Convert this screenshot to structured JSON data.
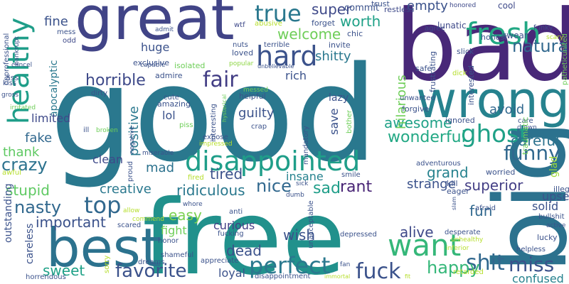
{
  "word_cloud": {
    "words": [
      {
        "text": "good",
        "color": "#2a788e"
      },
      {
        "text": "free",
        "color": "#21918c"
      },
      {
        "text": "bad",
        "color": "#482878"
      },
      {
        "text": "big",
        "color": "#2c728e"
      },
      {
        "text": "great",
        "color": "#414487"
      },
      {
        "text": "best",
        "color": "#2c728e"
      },
      {
        "text": "wrong",
        "color": "#26828e"
      },
      {
        "text": "disappointed",
        "color": "#1f9e89"
      },
      {
        "text": "hard",
        "color": "#3b528b"
      },
      {
        "text": "want",
        "color": "#35b779"
      },
      {
        "text": "healthy",
        "color": "#1f9e89"
      },
      {
        "text": "fresh",
        "color": "#22a884"
      },
      {
        "text": "true",
        "color": "#2a788e"
      },
      {
        "text": "fair",
        "color": "#433e85"
      },
      {
        "text": "top",
        "color": "#31688e"
      },
      {
        "text": "perfect",
        "color": "#2a788e"
      },
      {
        "text": "fuck",
        "color": "#3b528b"
      },
      {
        "text": "ghost",
        "color": "#1fa187"
      },
      {
        "text": "shit",
        "color": "#31688e"
      },
      {
        "text": "miss",
        "color": "#3b528b"
      },
      {
        "text": "happy",
        "color": "#35b779"
      },
      {
        "text": "favorite",
        "color": "#3b528b"
      },
      {
        "text": "funny",
        "color": "#31688e"
      },
      {
        "text": "natural",
        "color": "#31688e"
      },
      {
        "text": "crazy",
        "color": "#2c728e"
      },
      {
        "text": "nasty",
        "color": "#31688e"
      },
      {
        "text": "awesome",
        "color": "#1fa187"
      },
      {
        "text": "welcome",
        "color": "#6ece58"
      },
      {
        "text": "super",
        "color": "#3e4989"
      },
      {
        "text": "horrible",
        "color": "#3e4989"
      },
      {
        "text": "nice",
        "color": "#31688e"
      },
      {
        "text": "wonderful",
        "color": "#22a884"
      },
      {
        "text": "ridiculous",
        "color": "#2a788e"
      },
      {
        "text": "sweet",
        "color": "#1fa187"
      },
      {
        "text": "dead",
        "color": "#3b528b"
      },
      {
        "text": "grand",
        "color": "#26828e"
      },
      {
        "text": "superior",
        "color": "#433e85"
      },
      {
        "text": "tired",
        "color": "#3b528b"
      },
      {
        "text": "creative",
        "color": "#2a788e"
      },
      {
        "text": "important",
        "color": "#3b528b"
      },
      {
        "text": "stupid",
        "color": "#5ec962"
      },
      {
        "text": "sad",
        "color": "#1f9e89"
      },
      {
        "text": "rant",
        "color": "#482475"
      },
      {
        "text": "wish",
        "color": "#3b528b"
      },
      {
        "text": "alive",
        "color": "#3e4989"
      },
      {
        "text": "mad",
        "color": "#2c728e"
      },
      {
        "text": "easy",
        "color": "#7ad151"
      },
      {
        "text": "fun",
        "color": "#31688e"
      },
      {
        "text": "careful",
        "color": "#2c728e"
      },
      {
        "text": "fine",
        "color": "#3b528b"
      },
      {
        "text": "huge",
        "color": "#3b528b"
      },
      {
        "text": "worth",
        "color": "#1fa187"
      },
      {
        "text": "shitty",
        "color": "#2a788e"
      },
      {
        "text": "empty",
        "color": "#3b528b"
      },
      {
        "text": "fake",
        "color": "#31688e"
      },
      {
        "text": "thank",
        "color": "#5ec962"
      },
      {
        "text": "guilty",
        "color": "#3b528b"
      },
      {
        "text": "positive",
        "color": "#2a788e"
      },
      {
        "text": "apocalyptic",
        "color": "#2a788e"
      },
      {
        "text": "hilarious",
        "color": "#6ece58"
      },
      {
        "text": "avoid",
        "color": "#31688e"
      },
      {
        "text": "strange",
        "color": "#3b528b"
      },
      {
        "text": "fight",
        "color": "#6ece58"
      },
      {
        "text": "curious",
        "color": "#433e85"
      },
      {
        "text": "insane",
        "color": "#26828e"
      },
      {
        "text": "solid",
        "color": "#3b528b"
      },
      {
        "text": "upset",
        "color": "#3b528b"
      },
      {
        "text": "loyal",
        "color": "#3b528b"
      },
      {
        "text": "confused",
        "color": "#26828e"
      },
      {
        "text": "outstanding",
        "color": "#3b528b"
      },
      {
        "text": "save",
        "color": "#3b528b"
      },
      {
        "text": "rich",
        "color": "#3b528b"
      },
      {
        "text": "limited",
        "color": "#3e4989"
      },
      {
        "text": "clean",
        "color": "#3e4989"
      },
      {
        "text": "lol",
        "color": "#3b528b"
      },
      {
        "text": "lazy",
        "color": "#3b528b"
      },
      {
        "text": "glad",
        "color": "#9fda3a"
      },
      {
        "text": "careless",
        "color": "#3b528b"
      },
      {
        "text": "commit",
        "color": "#3b528b"
      },
      {
        "text": "restless",
        "color": "#3e4989"
      },
      {
        "text": "trust",
        "color": "#3b528b"
      },
      {
        "text": "honored",
        "color": "#3e4989"
      },
      {
        "text": "cool",
        "color": "#3e4989"
      },
      {
        "text": "lunatic",
        "color": "#3e4989"
      },
      {
        "text": "funky",
        "color": "#3e4989"
      },
      {
        "text": "swear",
        "color": "#3b528b"
      },
      {
        "text": "honest",
        "color": "#3b528b"
      },
      {
        "text": "agree",
        "color": "#3e4989"
      },
      {
        "text": "scary",
        "color": "#b5de2b"
      },
      {
        "text": "forget",
        "color": "#3b528b"
      },
      {
        "text": "invite",
        "color": "#3b528b"
      },
      {
        "text": "chic",
        "color": "#3b528b"
      },
      {
        "text": "mess",
        "color": "#3b528b"
      },
      {
        "text": "odd",
        "color": "#3e4989"
      },
      {
        "text": "admit",
        "color": "#3b528b"
      },
      {
        "text": "capable",
        "color": "#3b528b"
      },
      {
        "text": "isolated",
        "color": "#6ece58"
      },
      {
        "text": "wtf",
        "color": "#3e4989"
      },
      {
        "text": "nuts",
        "color": "#3b528b"
      },
      {
        "text": "loved",
        "color": "#3b528b"
      },
      {
        "text": "abusive",
        "color": "#b5de2b"
      },
      {
        "text": "terrible",
        "color": "#3b528b"
      },
      {
        "text": "exclusive",
        "color": "#3b528b"
      },
      {
        "text": "admire",
        "color": "#3b528b"
      },
      {
        "text": "popular",
        "color": "#8ed645"
      },
      {
        "text": "unbelievable",
        "color": "#3b528b"
      },
      {
        "text": "safe",
        "color": "#3b528b"
      },
      {
        "text": "slick",
        "color": "#3b528b"
      },
      {
        "text": "frustrating",
        "color": "#3b528b"
      },
      {
        "text": "dick",
        "color": "#b5de2b"
      },
      {
        "text": "interested",
        "color": "#3b528b"
      },
      {
        "text": "patheticunited",
        "color": "#6ece58"
      },
      {
        "text": "unwanted",
        "color": "#3b528b"
      },
      {
        "text": "forgive",
        "color": "#3b528b"
      },
      {
        "text": "care",
        "color": "#3b528b"
      },
      {
        "text": "drown",
        "color": "#3b528b"
      },
      {
        "text": "traumatic",
        "color": "#6ece58"
      },
      {
        "text": "ignored",
        "color": "#3b528b"
      },
      {
        "text": "adventurous",
        "color": "#3b528b"
      },
      {
        "text": "worried",
        "color": "#3b528b"
      },
      {
        "text": "unprofessional",
        "color": "#3b528b"
      },
      {
        "text": "cancel",
        "color": "#3b528b"
      },
      {
        "text": "bankrupt",
        "color": "#3b528b"
      },
      {
        "text": "ass",
        "color": "#3b528b"
      },
      {
        "text": "kiss",
        "color": "#3b528b"
      },
      {
        "text": "gross",
        "color": "#3b528b"
      },
      {
        "text": "irritated",
        "color": "#6ece58"
      },
      {
        "text": "dirty",
        "color": "#3b528b"
      },
      {
        "text": "cute",
        "color": "#3b528b"
      },
      {
        "text": "amazing",
        "color": "#3b528b"
      },
      {
        "text": "interesting",
        "color": "#3b528b"
      },
      {
        "text": "messed",
        "color": "#6ece58"
      },
      {
        "text": "helpful",
        "color": "#3b528b"
      },
      {
        "text": "hysterical",
        "color": "#6ece58"
      },
      {
        "text": "piss",
        "color": "#6ece58"
      },
      {
        "text": "crap",
        "color": "#3b528b"
      },
      {
        "text": "bother",
        "color": "#6ece58"
      },
      {
        "text": "ill",
        "color": "#3b528b"
      },
      {
        "text": "broken",
        "color": "#6ece58"
      },
      {
        "text": "expose",
        "color": "#3b528b"
      },
      {
        "text": "impressed",
        "color": "#b5de2b"
      },
      {
        "text": "mandatory",
        "color": "#3b528b"
      },
      {
        "text": "miserable",
        "color": "#3b528b"
      },
      {
        "text": "proud",
        "color": "#3b528b"
      },
      {
        "text": "negative",
        "color": "#3b528b"
      },
      {
        "text": "awful",
        "color": "#b5de2b"
      },
      {
        "text": "smile",
        "color": "#3b528b"
      },
      {
        "text": "fired",
        "color": "#b5de2b"
      },
      {
        "text": "sick",
        "color": "#3b528b"
      },
      {
        "text": "eager",
        "color": "#3b528b"
      },
      {
        "text": "kill",
        "color": "#3b528b"
      },
      {
        "text": "illegal",
        "color": "#3b528b"
      },
      {
        "text": "afraid",
        "color": "#3b528b"
      },
      {
        "text": "whore",
        "color": "#3b528b"
      },
      {
        "text": "dumb",
        "color": "#3b528b"
      },
      {
        "text": "slam",
        "color": "#3b528b"
      },
      {
        "text": "bullshit",
        "color": "#3b528b"
      },
      {
        "text": "active",
        "color": "#3b528b"
      },
      {
        "text": "allow",
        "color": "#b5de2b"
      },
      {
        "text": "anti",
        "color": "#3b528b"
      },
      {
        "text": "commend",
        "color": "#b5de2b"
      },
      {
        "text": "scared",
        "color": "#3b528b"
      },
      {
        "text": "fucking",
        "color": "#3b528b"
      },
      {
        "text": "unacceptable",
        "color": "#3b528b"
      },
      {
        "text": "depressed",
        "color": "#3b528b"
      },
      {
        "text": "desperate",
        "color": "#3b528b"
      },
      {
        "text": "unhealthy",
        "color": "#b5de2b"
      },
      {
        "text": "lucky",
        "color": "#3b528b"
      },
      {
        "text": "inferior",
        "color": "#b5de2b"
      },
      {
        "text": "helpless",
        "color": "#3b528b"
      },
      {
        "text": "honor",
        "color": "#3b528b"
      },
      {
        "text": "shameful",
        "color": "#3b528b"
      },
      {
        "text": "appreciate",
        "color": "#3b528b"
      },
      {
        "text": "dreams",
        "color": "#3b528b"
      },
      {
        "text": "sorry",
        "color": "#b5de2b"
      },
      {
        "text": "horrendous",
        "color": "#3b528b"
      },
      {
        "text": "disappointment",
        "color": "#3b528b"
      },
      {
        "text": "immortal",
        "color": "#b5de2b"
      },
      {
        "text": "fan",
        "color": "#3b528b"
      },
      {
        "text": "fit",
        "color": "#b5de2b"
      },
      {
        "text": "retarded",
        "color": "#b5de2b"
      }
    ]
  }
}
